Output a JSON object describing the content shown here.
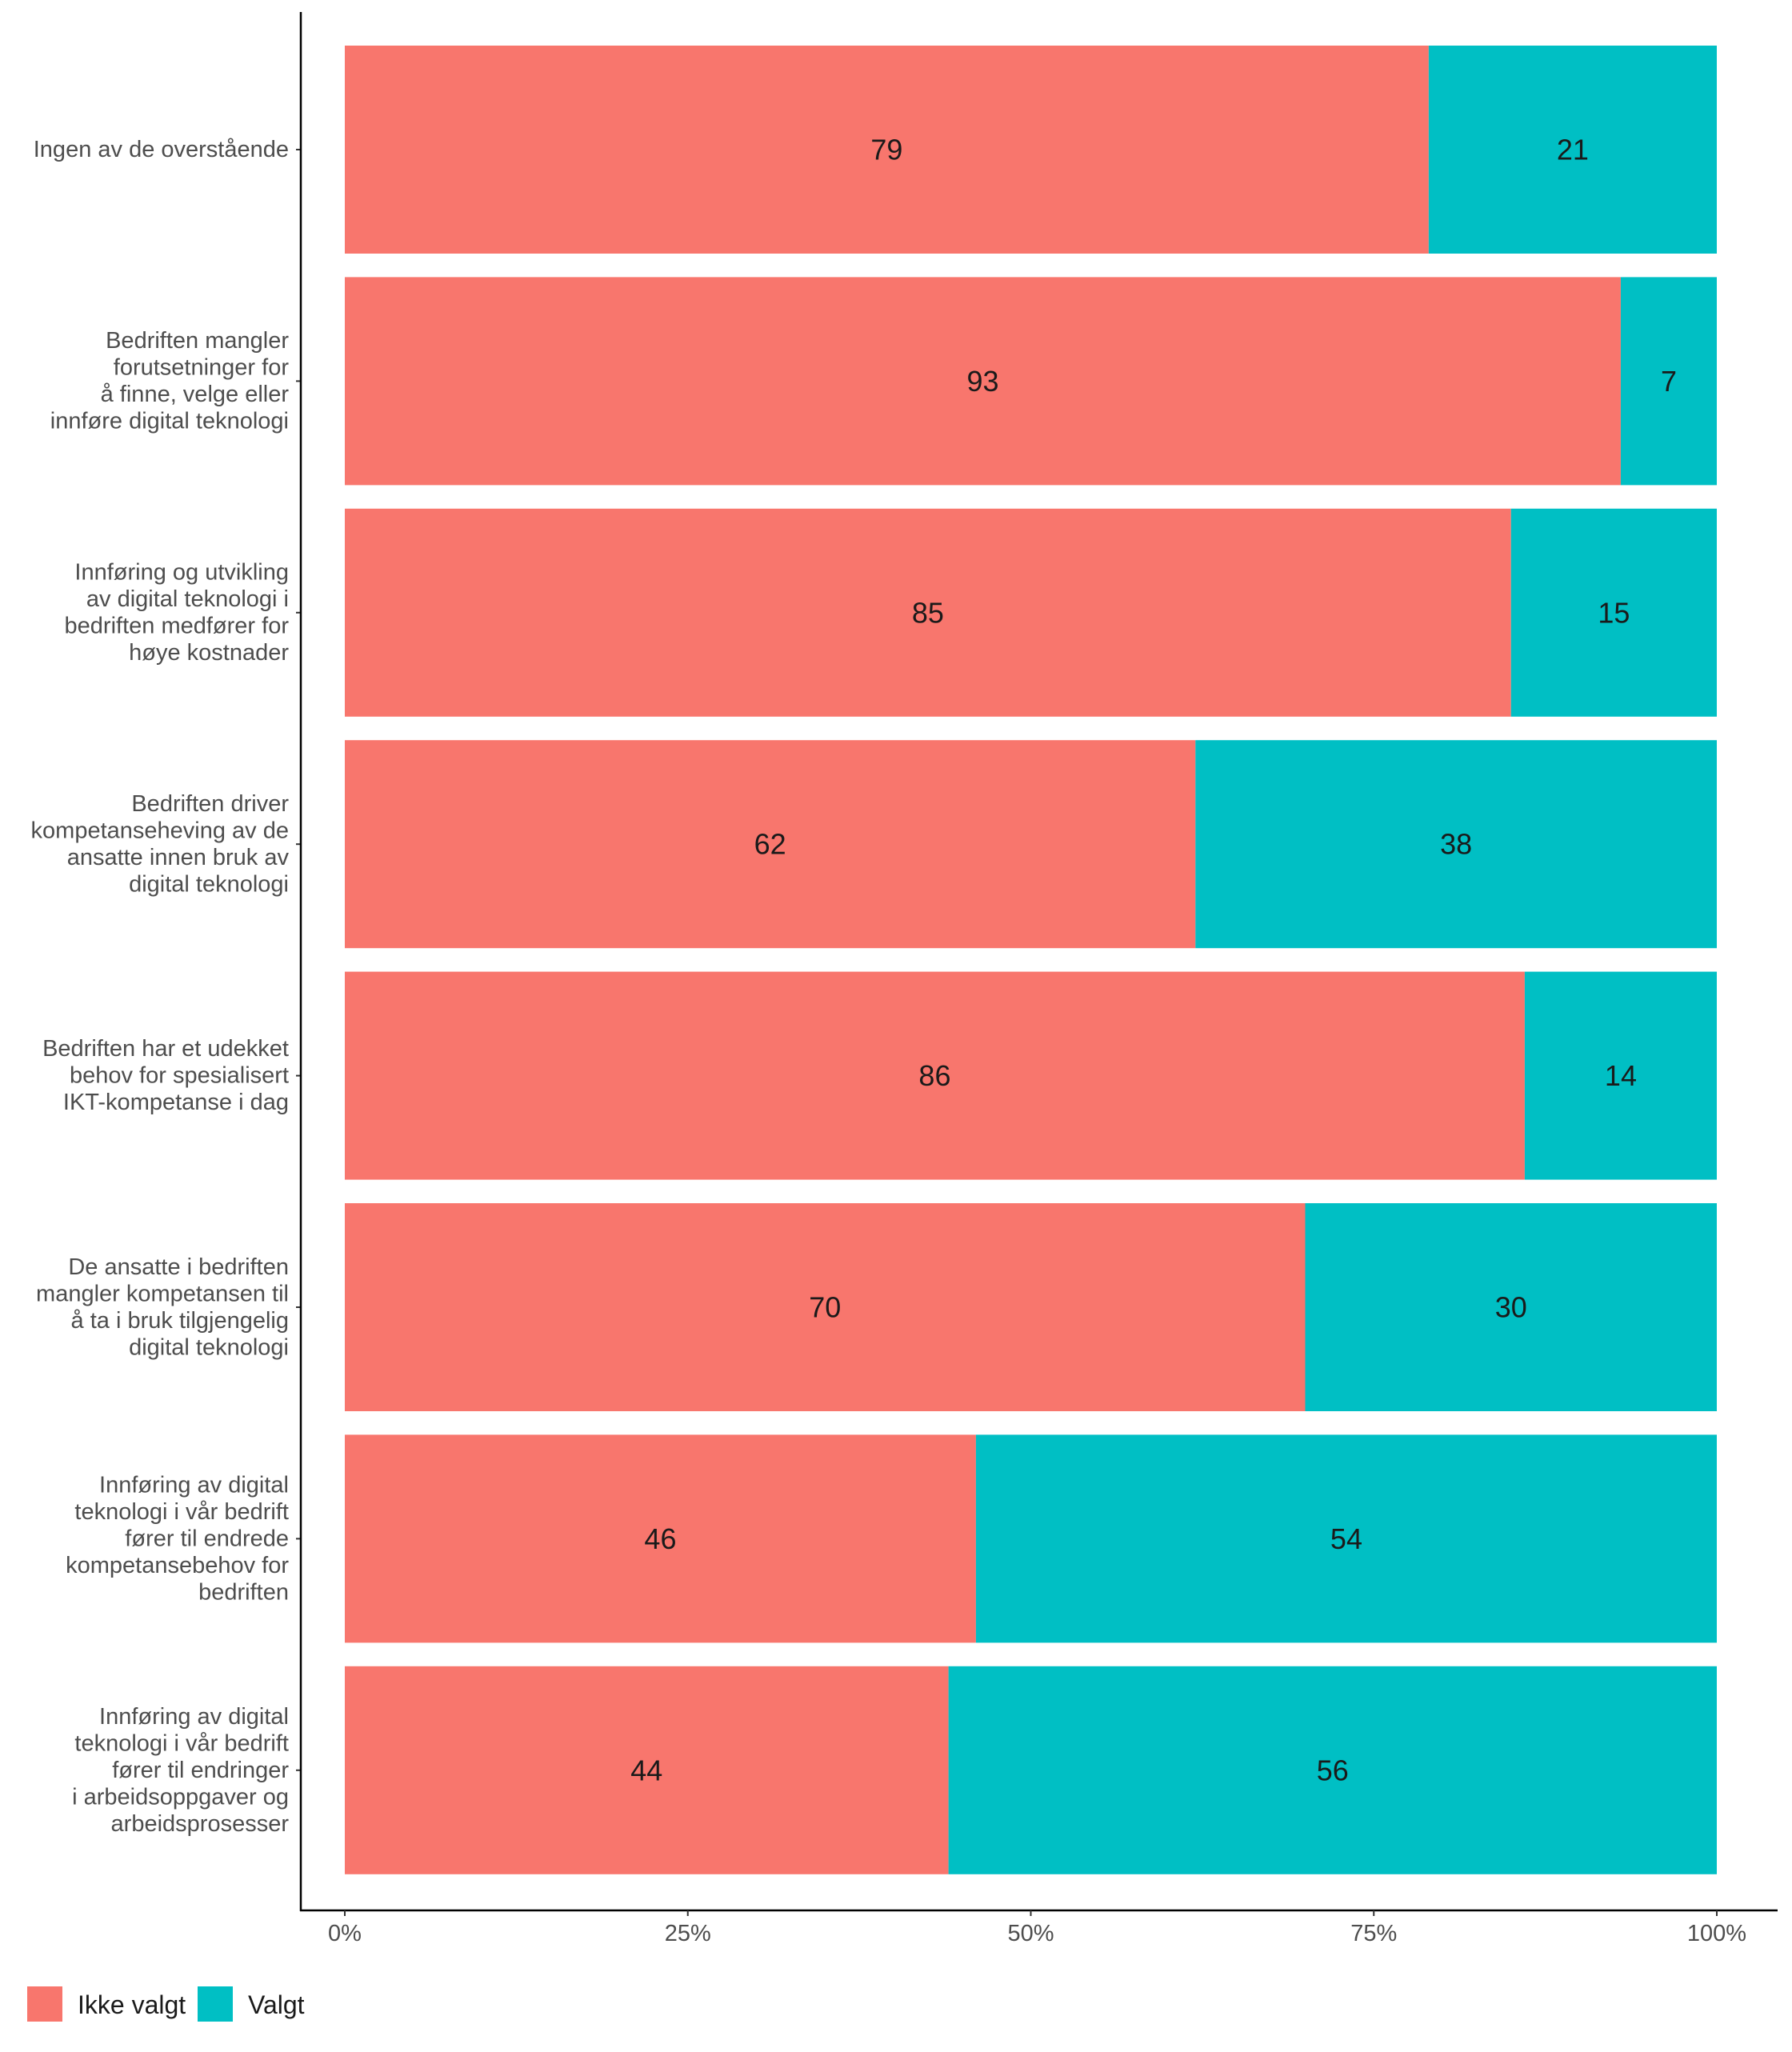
{
  "chart_data": {
    "type": "bar",
    "orientation": "horizontal",
    "stacked": true,
    "categories": [
      "Ingen av de overstående",
      "Bedriften mangler forutsetninger for å finne, velge eller innføre digital teknologi",
      "Innføring og utvikling av digital teknologi i bedriften medfører for høye kostnader",
      "Bedriften driver kompetanseheving av de ansatte innen bruk av digital teknologi",
      "Bedriften har et udekket behov for spesialisert IKT-kompetanse i dag",
      "De ansatte i bedriften mangler kompetansen til å ta i bruk tilgjengelig digital teknologi",
      "Innføring av digital teknologi i vår bedrift fører til endrede kompetansebehov for bedriften",
      "Innføring av digital teknologi i vår bedrift fører til endringer i arbeidsoppgaver og arbeidsprosesser"
    ],
    "category_lines": [
      [
        "Ingen av de overstående"
      ],
      [
        "Bedriften mangler",
        "forutsetninger for",
        "å finne, velge eller",
        "innføre digital teknologi"
      ],
      [
        "Innføring og utvikling",
        "av digital teknologi i",
        "bedriften medfører for",
        "høye kostnader"
      ],
      [
        "Bedriften driver",
        "kompetanseheving av de",
        "ansatte innen bruk av",
        "digital teknologi"
      ],
      [
        "Bedriften har et udekket",
        "behov for spesialisert",
        "IKT-kompetanse i dag"
      ],
      [
        "De ansatte i bedriften",
        "mangler kompetansen til",
        "å ta i bruk tilgjengelig",
        "digital teknologi"
      ],
      [
        "Innføring av digital",
        "teknologi i vår bedrift",
        "fører til endrede",
        "kompetansebehov for",
        "bedriften"
      ],
      [
        "Innføring av digital",
        "teknologi i vår bedrift",
        "fører til endringer",
        "i arbeidsoppgaver og",
        "arbeidsprosesser"
      ]
    ],
    "series": [
      {
        "name": "Ikke valgt",
        "color": "#F8766D",
        "values": [
          79,
          93,
          85,
          62,
          86,
          70,
          46,
          44
        ]
      },
      {
        "name": "Valgt",
        "color": "#00BFC4",
        "values": [
          21,
          7,
          15,
          38,
          14,
          30,
          54,
          56
        ]
      }
    ],
    "xlim": [
      0,
      100
    ],
    "x_ticks": [
      "0%",
      "25%",
      "50%",
      "75%",
      "100%"
    ],
    "title": "",
    "xlabel": "",
    "ylabel": "",
    "grid": false,
    "legend_position": "bottom-left"
  }
}
